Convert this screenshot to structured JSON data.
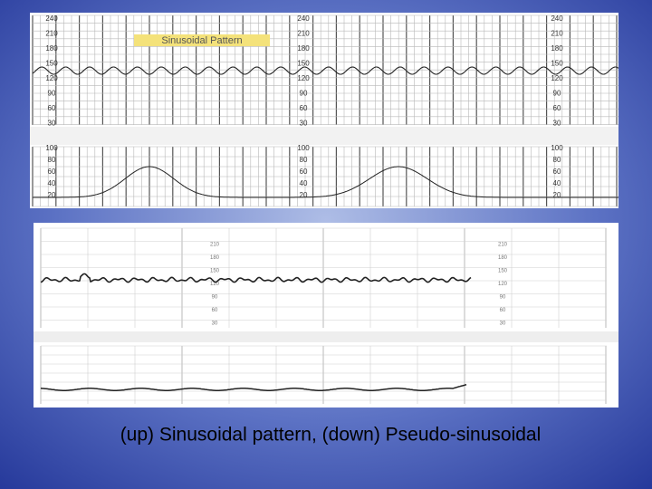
{
  "caption": "(up) Sinusoidal pattern, (down) Pseudo-sinusoidal",
  "top_trace": {
    "title": "Sinusoidal Pattern",
    "fhr_scale": [
      "240",
      "210",
      "180",
      "150",
      "120",
      "90",
      "60",
      "30"
    ],
    "uc_scale": [
      "100",
      "80",
      "60",
      "40",
      "20"
    ]
  },
  "bottom_trace": {
    "fhr_scale": [
      "210",
      "180",
      "150",
      "120",
      "90",
      "60",
      "30"
    ]
  }
}
